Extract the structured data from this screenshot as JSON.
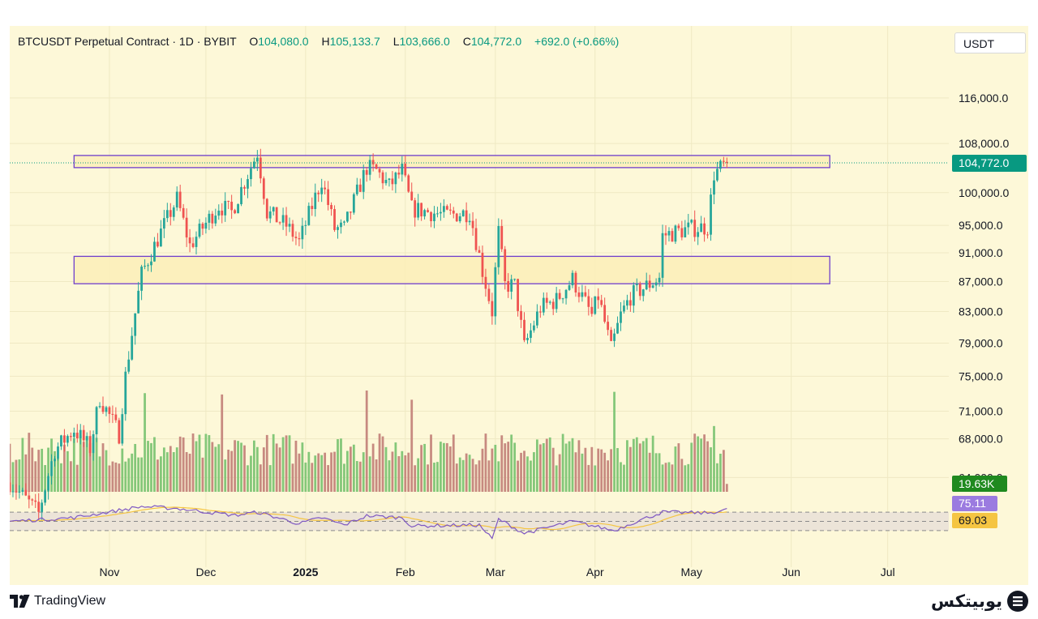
{
  "legend": {
    "symbol": "BTCUSDT Perpetual Contract · 1D · BYBIT",
    "open_label": "O",
    "open": "104,080.0",
    "high_label": "H",
    "high": "105,133.7",
    "low_label": "L",
    "low": "103,666.0",
    "close_label": "C",
    "close": "104,772.0",
    "change": "+692.0 (+0.66%)"
  },
  "currency_unit": "USDT",
  "footer": {
    "brand": "TradingView",
    "right_brand": "یوبیتکس"
  },
  "colors": {
    "background": "#fdf8d8",
    "up": "#26a69a",
    "down": "#ef5350",
    "volume_up": "#84c779",
    "volume_down": "#c78a80",
    "rect_border": "#6f3fcc",
    "rsi_line": "#7e57c2",
    "rsi_ma": "#f5c542",
    "price_badge": "#089981"
  },
  "chart_data": {
    "type": "candlestick",
    "symbol": "BTCUSDT",
    "timeframe": "1D",
    "exchange": "BYBIT",
    "y_axis": {
      "scale": "log",
      "ticks": [
        116000,
        108000,
        100000,
        95000,
        91000,
        87000,
        83000,
        79000,
        75000,
        71000,
        68000,
        64000
      ],
      "tick_labels": [
        "116,000.0",
        "108,000.0",
        "100,000.0",
        "95,000.0",
        "91,000.0",
        "87,000.0",
        "83,000.0",
        "79,000.0",
        "75,000.0",
        "71,000.0",
        "68,000.0",
        "64,000.0"
      ],
      "range": [
        62500,
        125000
      ]
    },
    "x_axis": {
      "start": "2024-10-01",
      "end": "2025-07-20",
      "ticks": [
        {
          "date": "2024-11-01",
          "label": "Nov",
          "bold": false
        },
        {
          "date": "2024-12-01",
          "label": "Dec",
          "bold": false
        },
        {
          "date": "2025-01-01",
          "label": "2025",
          "bold": true
        },
        {
          "date": "2025-02-01",
          "label": "Feb",
          "bold": false
        },
        {
          "date": "2025-03-01",
          "label": "Mar",
          "bold": false
        },
        {
          "date": "2025-04-01",
          "label": "Apr",
          "bold": false
        },
        {
          "date": "2025-05-01",
          "label": "May",
          "bold": false
        },
        {
          "date": "2025-06-01",
          "label": "Jun",
          "bold": false
        },
        {
          "date": "2025-07-01",
          "label": "Jul",
          "bold": false
        }
      ]
    },
    "last_date": "2025-05-12",
    "last_price": 104772,
    "last_price_label": "104,772.0",
    "anchors": [
      [
        "2024-10-01",
        63500
      ],
      [
        "2024-10-10",
        60500
      ],
      [
        "2024-10-15",
        66800
      ],
      [
        "2024-10-21",
        69000
      ],
      [
        "2024-10-26",
        67000
      ],
      [
        "2024-10-29",
        72500
      ],
      [
        "2024-11-04",
        68500
      ],
      [
        "2024-11-06",
        75000
      ],
      [
        "2024-11-11",
        88000
      ],
      [
        "2024-11-13",
        90000
      ],
      [
        "2024-11-22",
        99000
      ],
      [
        "2024-11-26",
        92000
      ],
      [
        "2024-12-05",
        98000
      ],
      [
        "2024-12-09",
        97000
      ],
      [
        "2024-12-17",
        106500
      ],
      [
        "2024-12-20",
        97000
      ],
      [
        "2024-12-26",
        95000
      ],
      [
        "2024-12-30",
        92500
      ],
      [
        "2025-01-06",
        102000
      ],
      [
        "2025-01-10",
        94500
      ],
      [
        "2025-01-13",
        94500
      ],
      [
        "2025-01-20",
        104000
      ],
      [
        "2025-01-23",
        103500
      ],
      [
        "2025-01-27",
        101000
      ],
      [
        "2025-01-31",
        103500
      ],
      [
        "2025-02-03",
        97500
      ],
      [
        "2025-02-14",
        96500
      ],
      [
        "2025-02-21",
        97000
      ],
      [
        "2025-02-25",
        88500
      ],
      [
        "2025-02-28",
        83000
      ],
      [
        "2025-03-02",
        94000
      ],
      [
        "2025-03-04",
        86500
      ],
      [
        "2025-03-07",
        86500
      ],
      [
        "2025-03-10",
        78500
      ],
      [
        "2025-03-15",
        83500
      ],
      [
        "2025-03-20",
        84500
      ],
      [
        "2025-03-25",
        87300
      ],
      [
        "2025-03-31",
        82500
      ],
      [
        "2025-04-02",
        85000
      ],
      [
        "2025-04-06",
        78200
      ],
      [
        "2025-04-09",
        82500
      ],
      [
        "2025-04-12",
        85000
      ],
      [
        "2025-04-21",
        87500
      ],
      [
        "2025-04-22",
        93500
      ],
      [
        "2025-04-30",
        94500
      ],
      [
        "2025-05-06",
        94800
      ],
      [
        "2025-05-08",
        103000
      ],
      [
        "2025-05-12",
        104772
      ]
    ],
    "rectangles": [
      {
        "start": "2024-10-21",
        "end": "2025-06-13",
        "top": 106000,
        "bottom": 104000
      },
      {
        "start": "2024-10-21",
        "end": "2025-06-13",
        "top": 90500,
        "bottom": 86700
      }
    ],
    "volume": {
      "last_label": "19.63K",
      "peaks": [
        {
          "date": "2024-11-12",
          "relative": 0.75
        },
        {
          "date": "2024-12-06",
          "relative": 0.74
        },
        {
          "date": "2025-01-20",
          "relative": 0.77
        },
        {
          "date": "2025-02-03",
          "relative": 0.7
        },
        {
          "date": "2025-04-07",
          "relative": 0.76
        },
        {
          "date": "2025-05-08",
          "relative": 0.5
        }
      ]
    },
    "rsi": {
      "rsi_value": "75.11",
      "ma_value": "69.03",
      "upper_band": 70,
      "lower_band": 30,
      "midline": 50,
      "anchors": [
        [
          "2024-10-01",
          50
        ],
        [
          "2024-10-21",
          58
        ],
        [
          "2024-11-11",
          82
        ],
        [
          "2024-11-22",
          78
        ],
        [
          "2024-12-10",
          63
        ],
        [
          "2024-12-17",
          70
        ],
        [
          "2024-12-30",
          45
        ],
        [
          "2025-01-06",
          58
        ],
        [
          "2025-01-13",
          42
        ],
        [
          "2025-01-20",
          62
        ],
        [
          "2025-01-31",
          58
        ],
        [
          "2025-02-03",
          40
        ],
        [
          "2025-02-24",
          42
        ],
        [
          "2025-02-28",
          12
        ],
        [
          "2025-03-02",
          55
        ],
        [
          "2025-03-10",
          24
        ],
        [
          "2025-03-25",
          50
        ],
        [
          "2025-04-07",
          30
        ],
        [
          "2025-04-12",
          45
        ],
        [
          "2025-04-22",
          70
        ],
        [
          "2025-05-06",
          68
        ],
        [
          "2025-05-12",
          75
        ]
      ]
    }
  }
}
